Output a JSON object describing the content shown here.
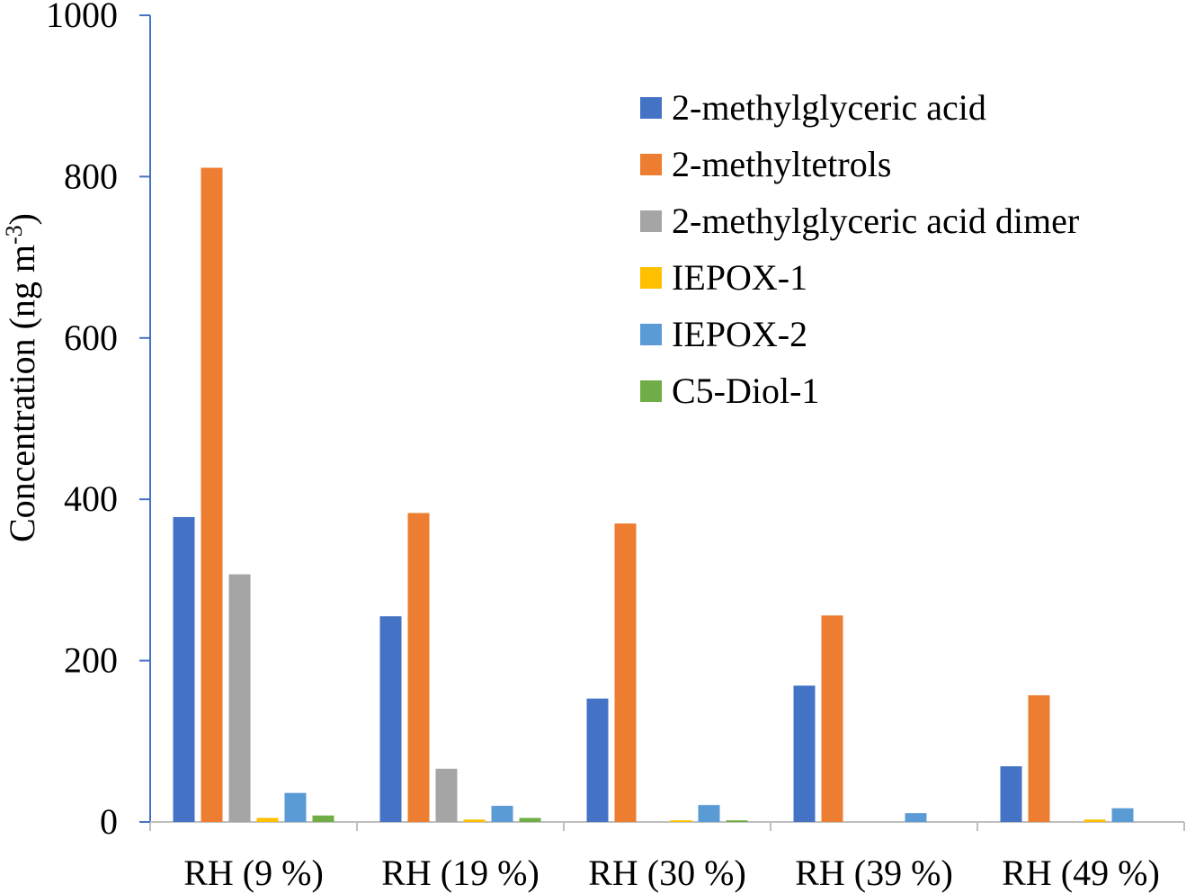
{
  "chart_data": {
    "type": "bar",
    "ylabel": "Concentration (ng m",
    "ylabel_superscript": "-3",
    "ylabel_suffix": ")",
    "ylim": [
      0,
      1000
    ],
    "yticks": [
      0,
      200,
      400,
      600,
      800,
      1000
    ],
    "yticks_labels": [
      "0",
      "200",
      "400",
      "600",
      "800",
      "1000"
    ],
    "grid": false,
    "legend_position": "top-right",
    "categories": [
      "RH (9 %)",
      "RH (19 %)",
      "RH (30 %)",
      "RH (39 %)",
      "RH (49 %)"
    ],
    "series": [
      {
        "name": "2-methylglyceric acid",
        "color": "#4472C4",
        "values": [
          378,
          255,
          153,
          169,
          69
        ]
      },
      {
        "name": "2-methyltetrols",
        "color": "#ED7D31",
        "values": [
          811,
          383,
          370,
          256,
          157
        ]
      },
      {
        "name": "2-methylglyceric acid dimer",
        "color": "#A5A5A5",
        "values": [
          307,
          66,
          0,
          0,
          0
        ]
      },
      {
        "name": "IEPOX-1",
        "color": "#FFC000",
        "values": [
          5,
          3,
          2,
          0,
          3
        ]
      },
      {
        "name": "IEPOX-2",
        "color": "#5B9BD5",
        "values": [
          36,
          20,
          21,
          11,
          17
        ]
      },
      {
        "name": "C5-Diol-1",
        "color": "#70AD47",
        "values": [
          8,
          5,
          2,
          0,
          0
        ]
      }
    ]
  }
}
